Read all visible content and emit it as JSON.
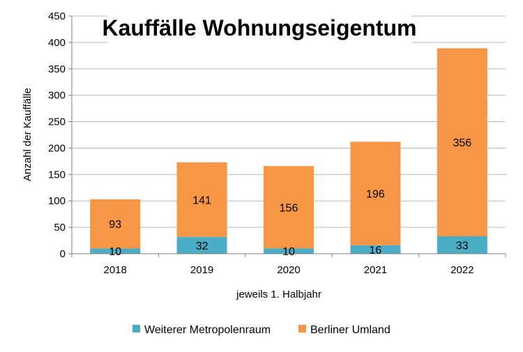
{
  "chart_data": {
    "type": "bar",
    "stacked": true,
    "title": "Kauffälle Wohnungseigentum",
    "xlabel": "jeweils 1. Halbjahr",
    "ylabel": "Anzahl der Kauffälle",
    "categories": [
      "2018",
      "2019",
      "2020",
      "2021",
      "2022"
    ],
    "ylim": [
      0,
      450
    ],
    "yticks": [
      0,
      50,
      100,
      150,
      200,
      250,
      300,
      350,
      400,
      450
    ],
    "grid": true,
    "legend_position": "bottom",
    "series": [
      {
        "name": "Weiterer Metropolenraum",
        "color": "#4bacc6",
        "values": [
          10,
          32,
          10,
          16,
          33
        ]
      },
      {
        "name": "Berliner Umland",
        "color": "#f79646",
        "values": [
          93,
          141,
          156,
          196,
          356
        ]
      }
    ]
  }
}
